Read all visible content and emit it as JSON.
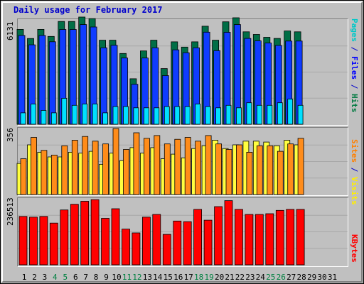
{
  "chart_data": {
    "type": "bar",
    "title": "Daily usage for February 2017",
    "categories": [
      "1",
      "2",
      "3",
      "4",
      "5",
      "6",
      "7",
      "8",
      "9",
      "10",
      "11",
      "12",
      "13",
      "14",
      "15",
      "16",
      "17",
      "18",
      "19",
      "20",
      "21",
      "22",
      "23",
      "24",
      "25",
      "26",
      "27",
      "28",
      "29",
      "30",
      "31"
    ],
    "weekend_days": [
      4,
      5,
      11,
      12,
      18,
      19,
      25,
      26
    ],
    "panels": [
      {
        "id": "pages-files-hits",
        "max_label": "6131",
        "ylim": [
          0,
          6131
        ],
        "axis_labels": [
          {
            "text": "Pages",
            "color": "#00c8c8"
          },
          {
            "text": " / ",
            "color": "#0000cc"
          },
          {
            "text": "Files",
            "color": "#0000ff"
          },
          {
            "text": " / ",
            "color": "#0000cc"
          },
          {
            "text": "Hits",
            "color": "#007a40"
          }
        ],
        "series": [
          {
            "name": "Hits",
            "color": "#006e46",
            "values": [
              5574,
              5038,
              5574,
              5160,
              6040,
              6040,
              6296,
              6208,
              4940,
              4940,
              4160,
              2672,
              4308,
              4940,
              3270,
              4844,
              4532,
              4844,
              5760,
              4940,
              6018,
              6258,
              5432,
              5276,
              5110,
              5042,
              5482,
              5432,
              null,
              null,
              null
            ]
          },
          {
            "name": "Files",
            "color": "#0f3cff",
            "values": [
              5216,
              4666,
              5216,
              4846,
              5566,
              5566,
              5854,
              5716,
              4490,
              4636,
              3890,
              2348,
              3890,
              4490,
              2858,
              4372,
              4202,
              4490,
              5410,
              4326,
              5400,
              5854,
              5042,
              4902,
              4770,
              4628,
              4890,
              4890,
              null,
              null,
              null
            ]
          },
          {
            "name": "Pages",
            "color": "#00e0ff",
            "values": [
              670,
              1188,
              814,
              670,
              1526,
              1114,
              1188,
              1188,
              670,
              1040,
              1040,
              966,
              966,
              966,
              1040,
              1040,
              1040,
              1188,
              1040,
              966,
              1114,
              966,
              1262,
              1114,
              1114,
              1262,
              1482,
              1114,
              null,
              null,
              null
            ]
          }
        ]
      },
      {
        "id": "sites-visits",
        "max_label": "356",
        "ylim": [
          0,
          356
        ],
        "axis_labels": [
          {
            "text": "Sites",
            "color": "#ff8000"
          },
          {
            "text": " / ",
            "color": "#0000cc"
          },
          {
            "text": "Visits",
            "color": "#ffee00"
          }
        ],
        "series": [
          {
            "name": "Visits",
            "color": "#ffff40",
            "values": [
              168,
              268,
              228,
              203,
              203,
              228,
              223,
              233,
              163,
              223,
              183,
              253,
              223,
              253,
              193,
              218,
              198,
              248,
              263,
              293,
              248,
              268,
              288,
              288,
              283,
              263,
              293,
              268,
              null,
              null,
              null
            ]
          },
          {
            "name": "Sites",
            "color": "#ff8c1a",
            "values": [
              193,
              308,
              238,
              213,
              263,
              293,
              313,
              288,
              273,
              356,
              243,
              333,
              303,
              318,
              273,
              298,
              308,
              288,
              318,
              273,
              243,
              268,
              228,
              263,
              263,
              233,
              273,
              303,
              null,
              null,
              null
            ]
          }
        ]
      },
      {
        "id": "kbytes",
        "max_label": "236513",
        "ylim": [
          0,
          236513
        ],
        "axis_labels": [
          {
            "text": "KBytes",
            "color": "#ff0000"
          }
        ],
        "series": [
          {
            "name": "KBytes",
            "color": "#ff0000",
            "values": [
              173500,
              171000,
              173500,
              149500,
              196500,
              217000,
              227500,
              233500,
              166500,
              201000,
              128000,
              114500,
              171000,
              180500,
              109000,
              157000,
              154500,
              198500,
              160000,
              208500,
              230000,
              198500,
              180500,
              180500,
              183000,
              195000,
              198500,
              198500,
              null,
              null,
              null
            ]
          }
        ]
      }
    ]
  }
}
